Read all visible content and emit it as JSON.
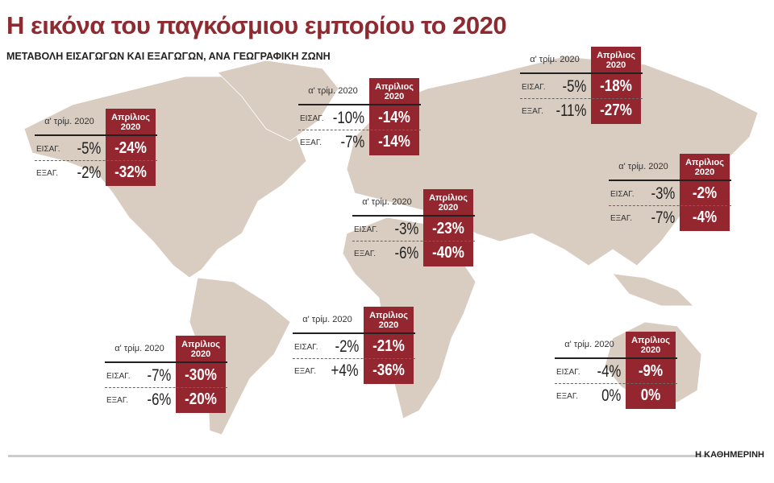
{
  "title": "Η εικόνα του παγκόσμιου εμπορίου το 2020",
  "subtitle": "ΜΕΤΑΒΟΛΗ ΕΙΣΑΓΩΓΩΝ ΚΑΙ ΕΞΑΓΩΓΩΝ, ΑΝΑ ΓΕΩΓΡΑΦΙΚΗ ΖΩΝΗ",
  "colors": {
    "accent": "#94262f",
    "land": "#d9cdc2",
    "title": "#8e2a30"
  },
  "labels": {
    "q1": "α' τρίμ. 2020",
    "april": "Απρίλιος 2020",
    "imports": "ΕΙΣΑΓ.",
    "exports": "ΕΞΑΓ."
  },
  "regions": [
    {
      "id": "north-america",
      "q1_imports": "-5%",
      "q1_exports": "-2%",
      "april_imports": "-24%",
      "april_exports": "-32%"
    },
    {
      "id": "europe",
      "q1_imports": "-10%",
      "q1_exports": "-7%",
      "april_imports": "-14%",
      "april_exports": "-14%"
    },
    {
      "id": "russia-cis",
      "q1_imports": "-5%",
      "q1_exports": "-11%",
      "april_imports": "-18%",
      "april_exports": "-27%"
    },
    {
      "id": "east-asia",
      "q1_imports": "-3%",
      "q1_exports": "-7%",
      "april_imports": "-2%",
      "april_exports": "-4%"
    },
    {
      "id": "middle-east",
      "q1_imports": "-3%",
      "q1_exports": "-6%",
      "april_imports": "-23%",
      "april_exports": "-40%"
    },
    {
      "id": "africa",
      "q1_imports": "-2%",
      "q1_exports": "+4%",
      "april_imports": "-21%",
      "april_exports": "-36%"
    },
    {
      "id": "south-america",
      "q1_imports": "-7%",
      "q1_exports": "-6%",
      "april_imports": "-30%",
      "april_exports": "-20%"
    },
    {
      "id": "oceania",
      "q1_imports": "-4%",
      "q1_exports": "0%",
      "april_imports": "-9%",
      "april_exports": "0%"
    }
  ],
  "footer": {
    "brand": "Η ΚΑΘΗΜΕΡΙΝΗ"
  }
}
